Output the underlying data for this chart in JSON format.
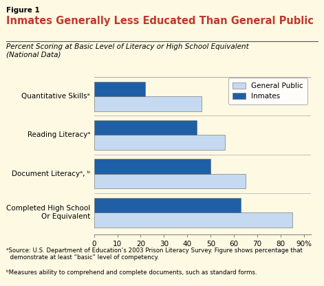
{
  "figure_label": "Figure 1",
  "title": "Inmates Generally Less Educated Than General Public",
  "subtitle": "Percent Scoring at Basic Level of Literacy or High School Equivalent\n(National Data)",
  "categories": [
    "Quantitative Skillsᵃ",
    "Reading Literacyᵃ",
    "Document Literacyᵃ, ᵇ",
    "Completed High School\nOr Equivalent"
  ],
  "general_public": [
    46,
    56,
    65,
    85
  ],
  "inmates": [
    22,
    44,
    50,
    63
  ],
  "general_public_color": "#c5d9f1",
  "inmates_color": "#1f5fa6",
  "background_color": "#fdf9e3",
  "title_color": "#c0392b",
  "xticks": [
    0,
    10,
    20,
    30,
    40,
    50,
    60,
    70,
    80,
    90
  ],
  "footnote_a": "ᵃSource: U.S. Department of Education’s 2003 Prison Literacy Survey. Figure shows percentage that\n  demonstrate at least “basic” level of competency.",
  "footnote_b": "ᵇMeasures ability to comprehend and complete documents, such as standard forms."
}
